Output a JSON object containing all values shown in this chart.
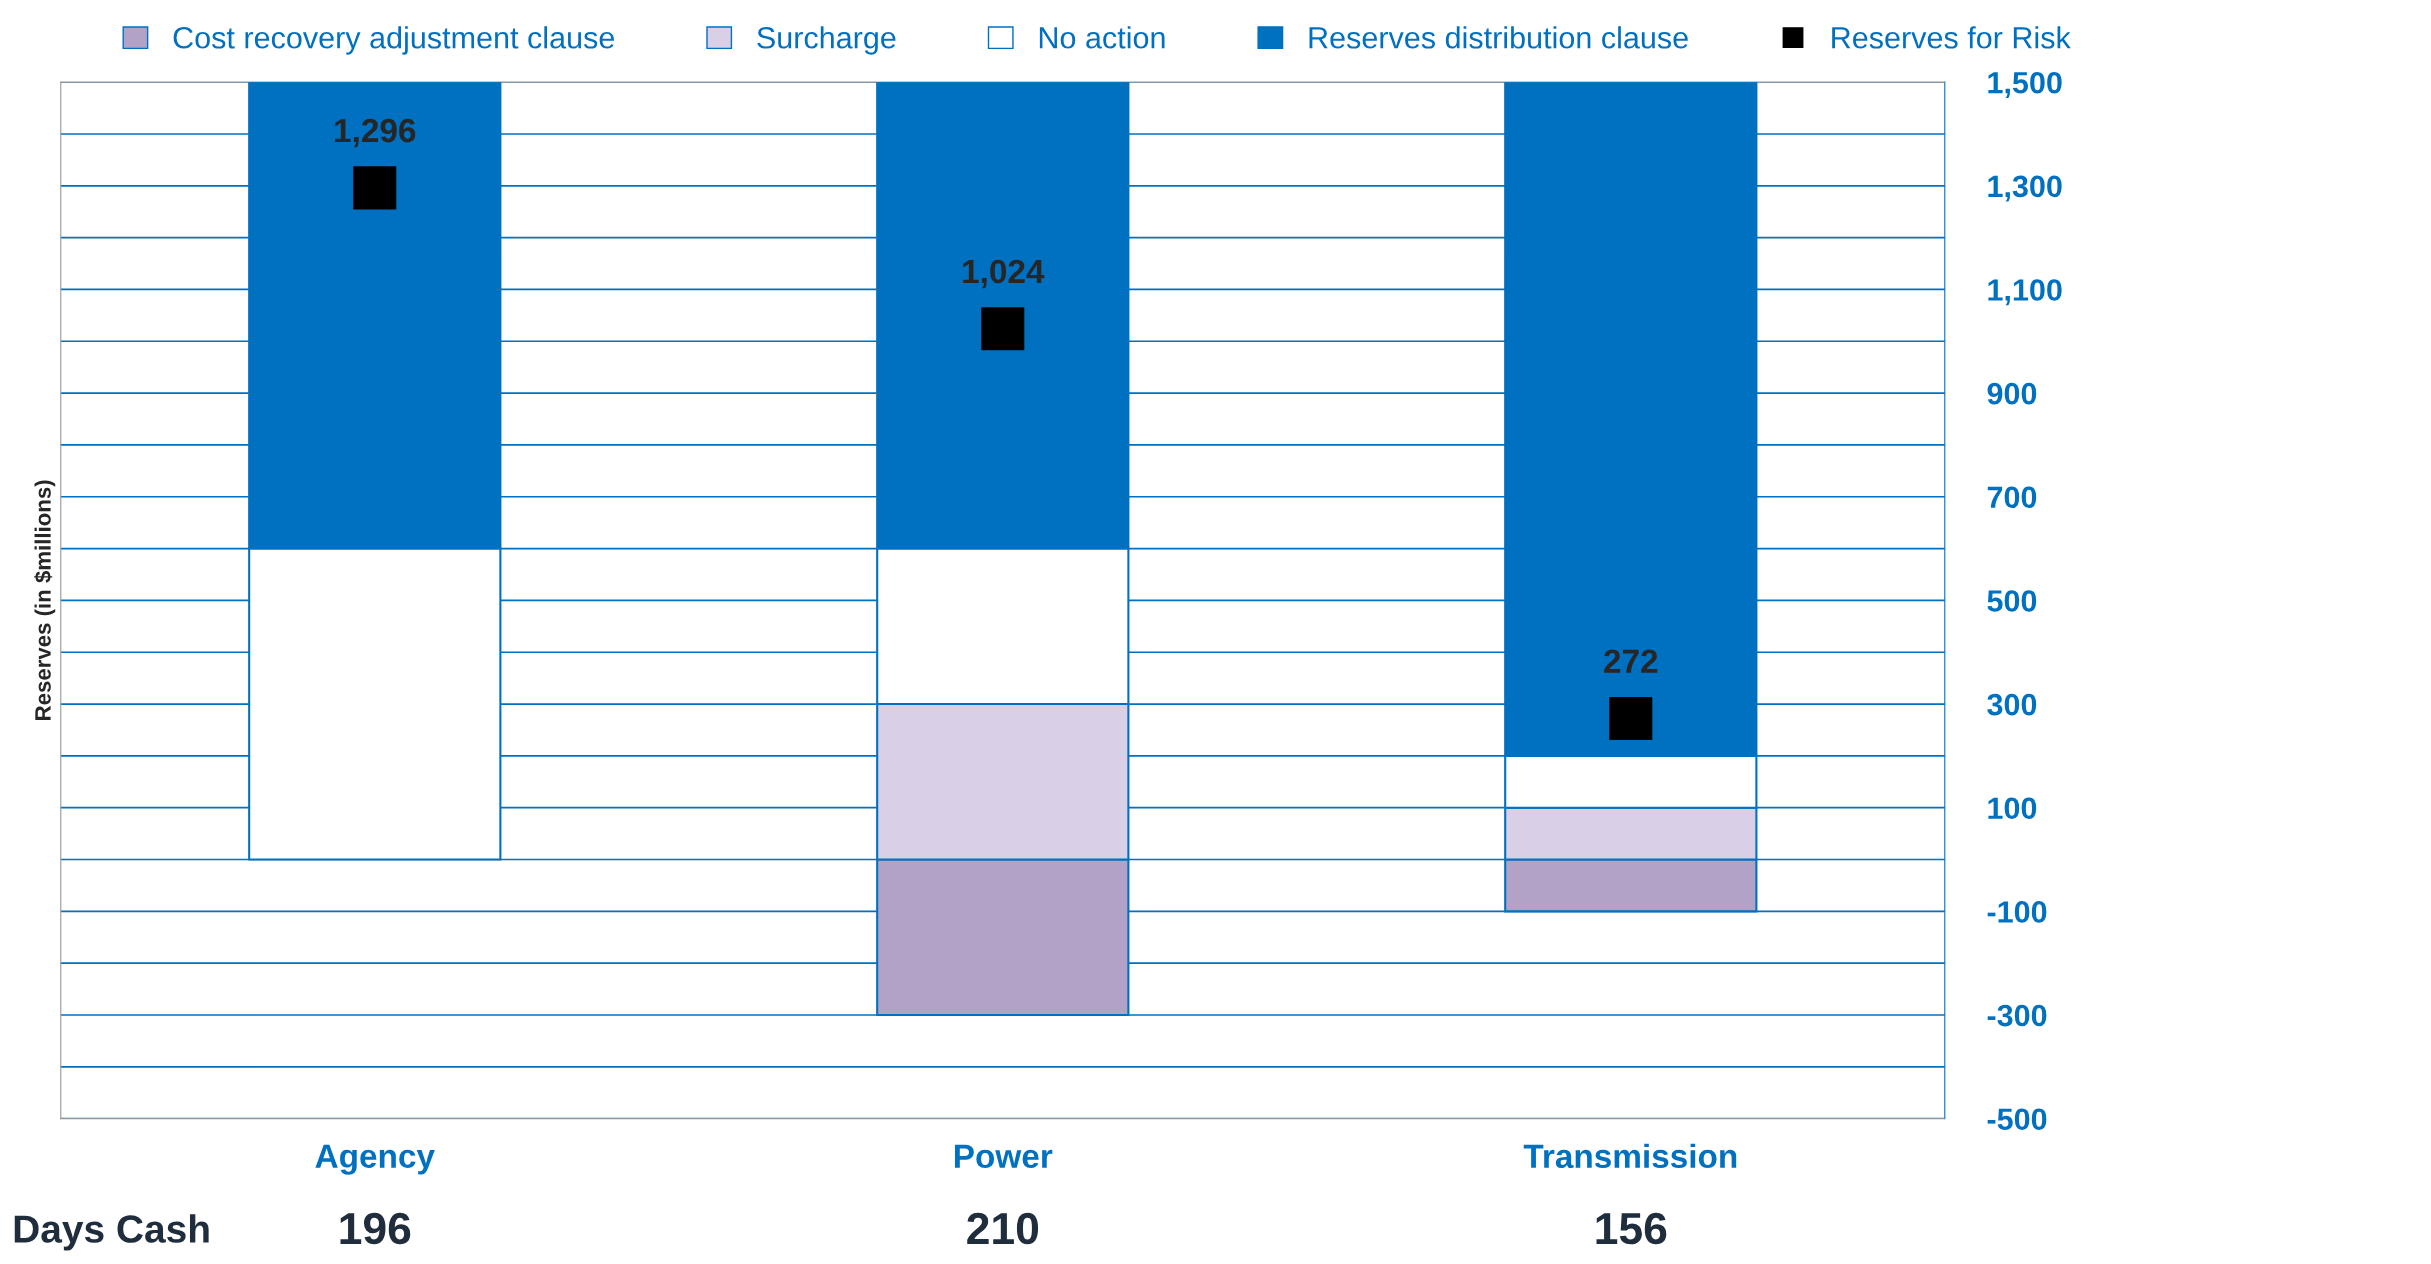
{
  "chart_data": {
    "type": "bar",
    "stacked": true,
    "ylabel": "Reserves (in $millions)",
    "categories": [
      "Agency",
      "Power",
      "Transmission"
    ],
    "series": [
      {
        "name": "Cost recovery adjustment clause",
        "color": "#b3a2c7",
        "values": [
          0,
          -300,
          -100
        ]
      },
      {
        "name": "Surcharge",
        "color": "#d9cfe6",
        "values": [
          0,
          300,
          100
        ]
      },
      {
        "name": "No action",
        "color": "#ffffff",
        "values": [
          600,
          300,
          100
        ]
      },
      {
        "name": "Reserves distribution clause",
        "color": "#0070c0",
        "values": [
          900,
          900,
          1300
        ]
      },
      {
        "name": "Reserves for Risk",
        "type": "scatter",
        "marker": "square",
        "color": "#000000",
        "x": [
          "Agency",
          "Power",
          "Transmission"
        ],
        "values": [
          1296,
          1024,
          272
        ],
        "value_labels": [
          "1,296",
          "1,024",
          "272"
        ]
      }
    ],
    "ylim": [
      -500,
      1500
    ],
    "yticks": [
      {
        "value": -500,
        "label": "-500"
      },
      {
        "value": -400,
        "label": null
      },
      {
        "value": -300,
        "label": "-300"
      },
      {
        "value": -200,
        "label": null
      },
      {
        "value": -100,
        "label": "-100"
      },
      {
        "value": 0,
        "label": null
      },
      {
        "value": 100,
        "label": "100"
      },
      {
        "value": 200,
        "label": null
      },
      {
        "value": 300,
        "label": "300"
      },
      {
        "value": 400,
        "label": null
      },
      {
        "value": 500,
        "label": "500"
      },
      {
        "value": 600,
        "label": null
      },
      {
        "value": 700,
        "label": "700"
      },
      {
        "value": 800,
        "label": null
      },
      {
        "value": 900,
        "label": "900"
      },
      {
        "value": 1000,
        "label": null
      },
      {
        "value": 1100,
        "label": "1,100"
      },
      {
        "value": 1200,
        "label": null
      },
      {
        "value": 1300,
        "label": "1,300"
      },
      {
        "value": 1400,
        "label": null
      },
      {
        "value": 1500,
        "label": "1,500"
      }
    ],
    "grid": "y",
    "legend": "top",
    "annotations": [
      "Days Cash",
      "196",
      "210",
      "156"
    ]
  }
}
